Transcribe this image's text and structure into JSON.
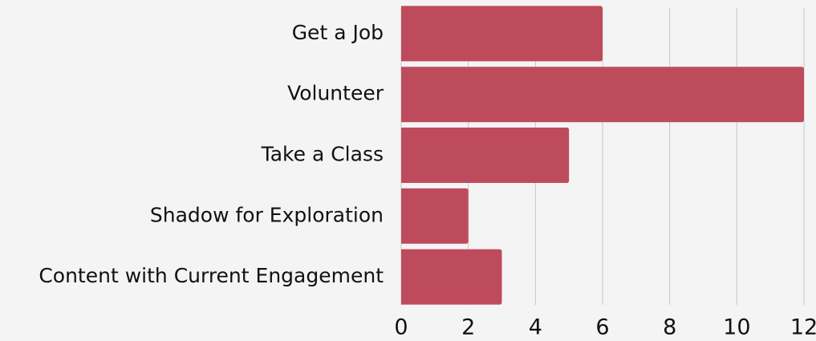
{
  "chart_data": {
    "type": "bar",
    "orientation": "horizontal",
    "categories": [
      "Get a Job",
      "Volunteer",
      "Take a Class",
      "Shadow for Exploration",
      "Content with Current Engagement"
    ],
    "values": [
      6,
      12,
      5,
      2,
      3
    ],
    "color": "#be4b5c",
    "xlim": [
      0,
      12
    ],
    "xticks": [
      0,
      2,
      4,
      6,
      8,
      10,
      12
    ],
    "grid": true
  }
}
